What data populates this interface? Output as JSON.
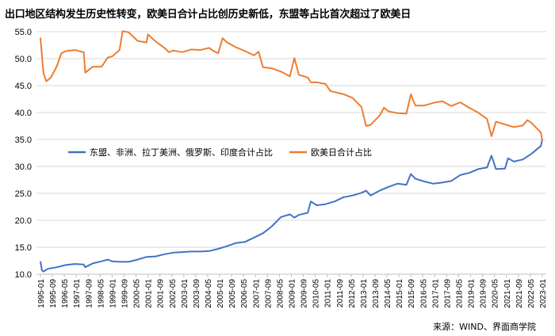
{
  "title": "出口地区结构发生历史性转变，欧美日合计占比创历史新低，东盟等占比首次超过了欧美日",
  "source": "来源：WIND、界面商学院",
  "colors": {
    "series1": "#4472C4",
    "series2": "#ED7D31",
    "grid": "#d9d9d9",
    "axis": "#bfbfbf"
  },
  "chart_data": {
    "type": "line",
    "title": "出口地区结构发生历史性转变，欧美日合计占比创历史新低，东盟等占比首次超过了欧美日",
    "xlabel": "",
    "ylabel": "",
    "ylim": [
      10.0,
      55.0
    ],
    "yticks": [
      "10.0",
      "15.0",
      "20.0",
      "25.0",
      "30.0",
      "35.0",
      "40.0",
      "45.0",
      "50.0",
      "55.0"
    ],
    "x_range": [
      "1995-01",
      "2023-01"
    ],
    "x_ticks": [
      "1995-01",
      "1995-09",
      "1996-05",
      "1997-01",
      "1997-09",
      "1998-05",
      "1999-01",
      "1999-09",
      "2000-05",
      "2001-01",
      "2001-09",
      "2002-05",
      "2003-01",
      "2003-09",
      "2004-05",
      "2005-01",
      "2005-09",
      "2006-05",
      "2007-01",
      "2007-09",
      "2008-05",
      "2009-01",
      "2009-09",
      "2010-05",
      "2011-01",
      "2011-09",
      "2012-05",
      "2013-01",
      "2013-09",
      "2014-05",
      "2015-01",
      "2015-09",
      "2016-05",
      "2017-01",
      "2017-09",
      "2018-05",
      "2019-01",
      "2019-09",
      "2020-05",
      "2021-01",
      "2021-09",
      "2022-05",
      "2023-01"
    ],
    "grid": true,
    "legend_position": "center-left",
    "series": [
      {
        "name": "东盟、非洲、拉丁美洲、俄罗斯、印度合计占比",
        "color": "#4472C4",
        "points": [
          [
            "1995-01",
            12.4
          ],
          [
            "1995-02",
            10.7
          ],
          [
            "1995-03",
            10.5
          ],
          [
            "1995-06",
            11.0
          ],
          [
            "1995-12",
            11.3
          ],
          [
            "1996-06",
            11.7
          ],
          [
            "1996-12",
            11.9
          ],
          [
            "1997-06",
            11.8
          ],
          [
            "1997-07",
            11.3
          ],
          [
            "1997-12",
            12.0
          ],
          [
            "1998-06",
            12.4
          ],
          [
            "1998-10",
            12.7
          ],
          [
            "1999-01",
            12.4
          ],
          [
            "1999-06",
            12.3
          ],
          [
            "1999-12",
            12.3
          ],
          [
            "2000-06",
            12.7
          ],
          [
            "2000-12",
            13.2
          ],
          [
            "2001-06",
            13.3
          ],
          [
            "2001-12",
            13.7
          ],
          [
            "2002-06",
            14.0
          ],
          [
            "2002-12",
            14.1
          ],
          [
            "2003-06",
            14.2
          ],
          [
            "2003-12",
            14.2
          ],
          [
            "2004-06",
            14.3
          ],
          [
            "2004-12",
            14.7
          ],
          [
            "2005-06",
            15.2
          ],
          [
            "2005-12",
            15.8
          ],
          [
            "2006-06",
            16.0
          ],
          [
            "2006-12",
            16.8
          ],
          [
            "2007-06",
            17.6
          ],
          [
            "2007-12",
            18.9
          ],
          [
            "2008-06",
            20.6
          ],
          [
            "2008-12",
            21.1
          ],
          [
            "2009-03",
            20.5
          ],
          [
            "2009-06",
            21.0
          ],
          [
            "2009-12",
            21.4
          ],
          [
            "2010-02",
            23.5
          ],
          [
            "2010-06",
            22.8
          ],
          [
            "2010-12",
            23.0
          ],
          [
            "2011-06",
            23.5
          ],
          [
            "2011-12",
            24.3
          ],
          [
            "2012-06",
            24.6
          ],
          [
            "2012-12",
            25.1
          ],
          [
            "2013-03",
            25.5
          ],
          [
            "2013-06",
            24.6
          ],
          [
            "2013-12",
            25.5
          ],
          [
            "2014-06",
            26.2
          ],
          [
            "2014-12",
            26.8
          ],
          [
            "2015-06",
            26.6
          ],
          [
            "2015-09",
            28.6
          ],
          [
            "2015-12",
            27.7
          ],
          [
            "2016-06",
            27.2
          ],
          [
            "2016-12",
            26.8
          ],
          [
            "2017-06",
            27.0
          ],
          [
            "2017-12",
            27.3
          ],
          [
            "2018-06",
            28.4
          ],
          [
            "2018-12",
            28.8
          ],
          [
            "2019-06",
            29.5
          ],
          [
            "2019-12",
            29.8
          ],
          [
            "2020-03",
            32.0
          ],
          [
            "2020-06",
            29.5
          ],
          [
            "2020-12",
            29.6
          ],
          [
            "2021-02",
            31.5
          ],
          [
            "2021-06",
            30.9
          ],
          [
            "2021-12",
            31.3
          ],
          [
            "2022-06",
            32.4
          ],
          [
            "2022-12",
            33.8
          ],
          [
            "2023-01",
            35.0
          ]
        ]
      },
      {
        "name": "欧美日合计占比",
        "color": "#ED7D31",
        "points": [
          [
            "1995-01",
            53.9
          ],
          [
            "1995-03",
            47.3
          ],
          [
            "1995-05",
            45.8
          ],
          [
            "1995-08",
            46.5
          ],
          [
            "1995-12",
            48.6
          ],
          [
            "1996-03",
            51.0
          ],
          [
            "1996-06",
            51.4
          ],
          [
            "1996-12",
            51.6
          ],
          [
            "1997-06",
            51.2
          ],
          [
            "1997-07",
            47.4
          ],
          [
            "1997-12",
            48.5
          ],
          [
            "1998-06",
            48.5
          ],
          [
            "1998-10",
            50.2
          ],
          [
            "1999-01",
            50.4
          ],
          [
            "1999-06",
            51.6
          ],
          [
            "1999-08",
            55.1
          ],
          [
            "1999-12",
            54.9
          ],
          [
            "2000-06",
            53.3
          ],
          [
            "2000-12",
            53.0
          ],
          [
            "2001-01",
            54.5
          ],
          [
            "2001-06",
            53.2
          ],
          [
            "2001-12",
            52.0
          ],
          [
            "2002-03",
            51.2
          ],
          [
            "2002-06",
            51.5
          ],
          [
            "2002-12",
            51.2
          ],
          [
            "2003-06",
            51.7
          ],
          [
            "2003-12",
            51.6
          ],
          [
            "2004-06",
            52.0
          ],
          [
            "2004-09",
            51.4
          ],
          [
            "2004-12",
            51.0
          ],
          [
            "2005-03",
            53.8
          ],
          [
            "2005-06",
            53.0
          ],
          [
            "2005-12",
            52.1
          ],
          [
            "2006-06",
            51.4
          ],
          [
            "2006-12",
            50.6
          ],
          [
            "2007-03",
            51.3
          ],
          [
            "2007-06",
            48.4
          ],
          [
            "2007-12",
            48.2
          ],
          [
            "2008-06",
            47.6
          ],
          [
            "2008-12",
            46.7
          ],
          [
            "2009-03",
            50.1
          ],
          [
            "2009-06",
            47.0
          ],
          [
            "2009-12",
            46.5
          ],
          [
            "2010-02",
            45.6
          ],
          [
            "2010-06",
            45.6
          ],
          [
            "2010-12",
            45.3
          ],
          [
            "2011-03",
            44.0
          ],
          [
            "2011-06",
            43.8
          ],
          [
            "2011-12",
            43.4
          ],
          [
            "2012-06",
            42.7
          ],
          [
            "2012-12",
            41.0
          ],
          [
            "2013-03",
            37.5
          ],
          [
            "2013-06",
            37.7
          ],
          [
            "2013-12",
            39.4
          ],
          [
            "2014-03",
            40.9
          ],
          [
            "2014-06",
            40.2
          ],
          [
            "2014-12",
            39.9
          ],
          [
            "2015-06",
            39.8
          ],
          [
            "2015-09",
            43.4
          ],
          [
            "2015-12",
            41.3
          ],
          [
            "2016-06",
            41.3
          ],
          [
            "2016-12",
            41.8
          ],
          [
            "2017-06",
            42.1
          ],
          [
            "2017-12",
            41.2
          ],
          [
            "2018-06",
            41.9
          ],
          [
            "2018-12",
            40.9
          ],
          [
            "2019-06",
            40.0
          ],
          [
            "2019-12",
            38.8
          ],
          [
            "2020-03",
            35.6
          ],
          [
            "2020-06",
            38.3
          ],
          [
            "2020-12",
            37.8
          ],
          [
            "2021-06",
            37.3
          ],
          [
            "2021-12",
            37.6
          ],
          [
            "2022-03",
            38.6
          ],
          [
            "2022-06",
            38.0
          ],
          [
            "2022-12",
            36.3
          ],
          [
            "2023-01",
            34.8
          ]
        ]
      }
    ]
  }
}
